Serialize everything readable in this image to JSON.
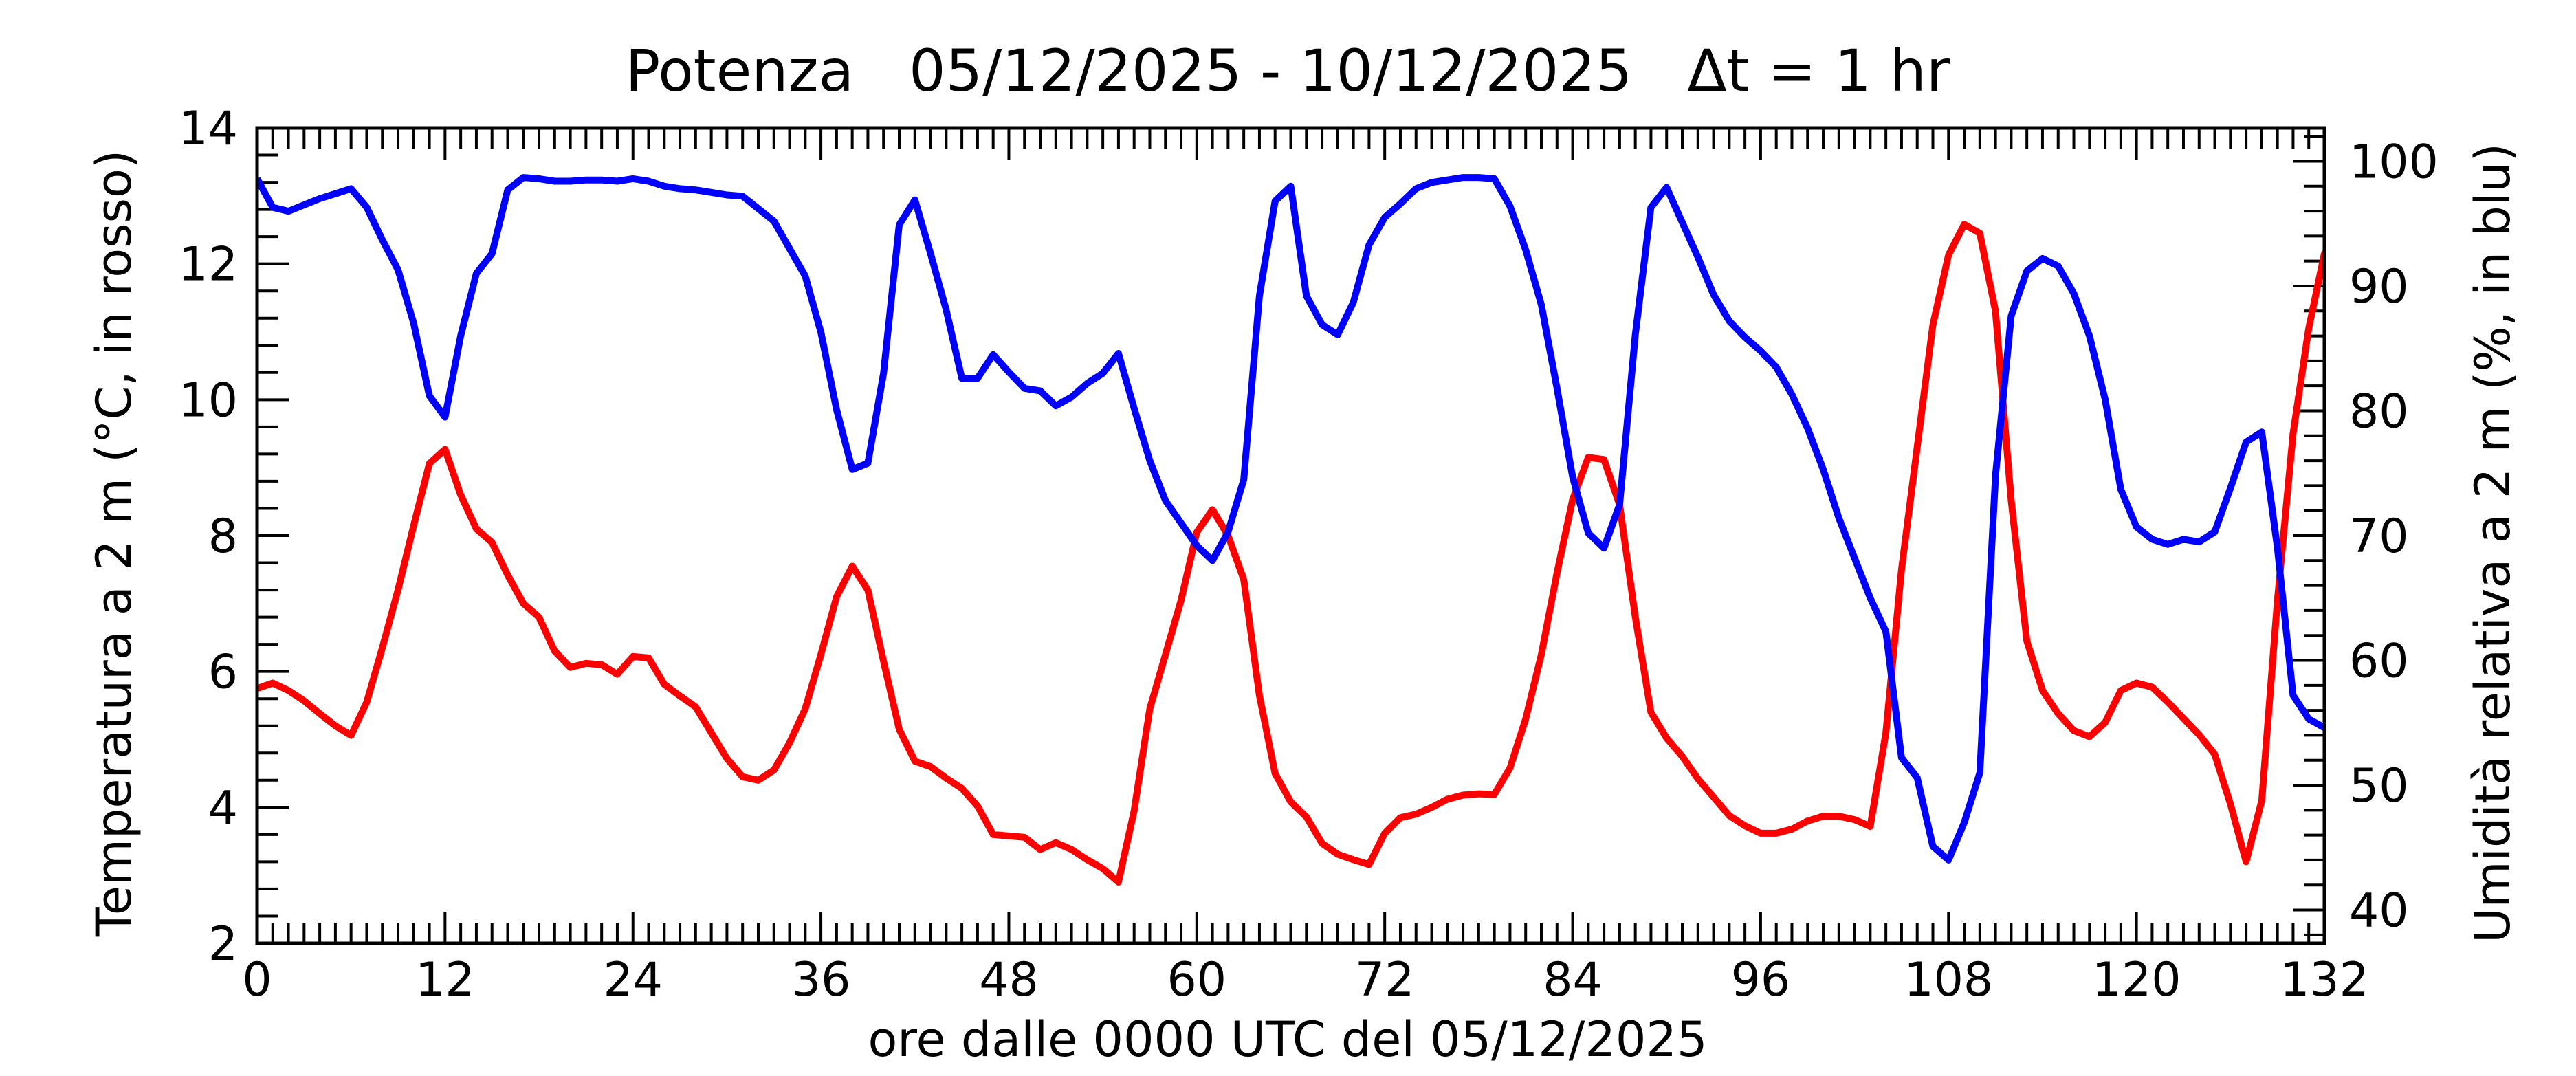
{
  "chart_data": {
    "type": "line",
    "title": "Potenza   05/12/2025 - 10/12/2025   Δt = 1 hr",
    "xlabel": "ore dalle 0000 UTC del 05/12/2025",
    "ylabel_left": "Temperatura a 2 m (°C, in rosso)",
    "ylabel_right": "Umidità relativa a 2 m (%, in blu)",
    "xlim": [
      0,
      132
    ],
    "ylim_left": [
      2,
      14
    ],
    "ylim_right": [
      37.33,
      102.67
    ],
    "x_ticks": [
      0,
      12,
      24,
      36,
      48,
      60,
      72,
      84,
      96,
      108,
      120,
      132
    ],
    "y_left_ticks": [
      2,
      4,
      6,
      8,
      10,
      12,
      14
    ],
    "y_right_ticks": [
      40,
      50,
      60,
      70,
      80,
      90,
      100
    ],
    "grid": false,
    "legend": "none",
    "series": [
      {
        "axis": "left",
        "color": "#ff0000",
        "points": [
          [
            0,
            5.75
          ],
          [
            1,
            5.83
          ],
          [
            2,
            5.72
          ],
          [
            3,
            5.57
          ],
          [
            4,
            5.38
          ],
          [
            5,
            5.2
          ],
          [
            6,
            5.06
          ],
          [
            7,
            5.55
          ],
          [
            8,
            6.35
          ],
          [
            9,
            7.2
          ],
          [
            10,
            8.15
          ],
          [
            11,
            9.06
          ],
          [
            12,
            9.27
          ],
          [
            13,
            8.6
          ],
          [
            14,
            8.1
          ],
          [
            15,
            7.9
          ],
          [
            16,
            7.42
          ],
          [
            17,
            7.0
          ],
          [
            18,
            6.8
          ],
          [
            19,
            6.3
          ],
          [
            20,
            6.06
          ],
          [
            21,
            6.12
          ],
          [
            22,
            6.1
          ],
          [
            23,
            5.96
          ],
          [
            24,
            6.22
          ],
          [
            25,
            6.2
          ],
          [
            26,
            5.81
          ],
          [
            27,
            5.64
          ],
          [
            28,
            5.48
          ],
          [
            29,
            5.1
          ],
          [
            30,
            4.72
          ],
          [
            31,
            4.45
          ],
          [
            32,
            4.4
          ],
          [
            33,
            4.55
          ],
          [
            34,
            4.95
          ],
          [
            35,
            5.45
          ],
          [
            36,
            6.25
          ],
          [
            37,
            7.1
          ],
          [
            38,
            7.55
          ],
          [
            39,
            7.2
          ],
          [
            40,
            6.15
          ],
          [
            41,
            5.15
          ],
          [
            42,
            4.68
          ],
          [
            43,
            4.6
          ],
          [
            44,
            4.43
          ],
          [
            45,
            4.28
          ],
          [
            46,
            4.02
          ],
          [
            47,
            3.6
          ],
          [
            48,
            3.58
          ],
          [
            49,
            3.56
          ],
          [
            50,
            3.38
          ],
          [
            51,
            3.48
          ],
          [
            52,
            3.38
          ],
          [
            53,
            3.23
          ],
          [
            54,
            3.1
          ],
          [
            55,
            2.9
          ],
          [
            56,
            3.95
          ],
          [
            57,
            5.45
          ],
          [
            58,
            6.25
          ],
          [
            59,
            7.05
          ],
          [
            60,
            8.05
          ],
          [
            61,
            8.38
          ],
          [
            62,
            8.0
          ],
          [
            63,
            7.35
          ],
          [
            64,
            5.65
          ],
          [
            65,
            4.5
          ],
          [
            66,
            4.08
          ],
          [
            67,
            3.86
          ],
          [
            68,
            3.47
          ],
          [
            69,
            3.31
          ],
          [
            70,
            3.23
          ],
          [
            71,
            3.16
          ],
          [
            72,
            3.62
          ],
          [
            73,
            3.85
          ],
          [
            74,
            3.9
          ],
          [
            75,
            4.0
          ],
          [
            76,
            4.12
          ],
          [
            77,
            4.18
          ],
          [
            78,
            4.2
          ],
          [
            79,
            4.19
          ],
          [
            80,
            4.58
          ],
          [
            81,
            5.3
          ],
          [
            82,
            6.25
          ],
          [
            83,
            7.45
          ],
          [
            84,
            8.53
          ],
          [
            85,
            9.15
          ],
          [
            86,
            9.12
          ],
          [
            87,
            8.45
          ],
          [
            88,
            6.8
          ],
          [
            89,
            5.4
          ],
          [
            90,
            5.02
          ],
          [
            91,
            4.75
          ],
          [
            92,
            4.42
          ],
          [
            93,
            4.15
          ],
          [
            94,
            3.88
          ],
          [
            95,
            3.73
          ],
          [
            96,
            3.62
          ],
          [
            97,
            3.62
          ],
          [
            98,
            3.68
          ],
          [
            99,
            3.8
          ],
          [
            100,
            3.87
          ],
          [
            101,
            3.87
          ],
          [
            102,
            3.82
          ],
          [
            103,
            3.72
          ],
          [
            104,
            5.1
          ],
          [
            105,
            7.5
          ],
          [
            106,
            9.3
          ],
          [
            107,
            11.1
          ],
          [
            108,
            12.13
          ],
          [
            109,
            12.58
          ],
          [
            110,
            12.45
          ],
          [
            111,
            11.3
          ],
          [
            112,
            8.52
          ],
          [
            113,
            6.45
          ],
          [
            114,
            5.72
          ],
          [
            115,
            5.38
          ],
          [
            116,
            5.13
          ],
          [
            117,
            5.04
          ],
          [
            118,
            5.25
          ],
          [
            119,
            5.72
          ],
          [
            120,
            5.83
          ],
          [
            121,
            5.77
          ],
          [
            122,
            5.55
          ],
          [
            123,
            5.31
          ],
          [
            124,
            5.07
          ],
          [
            125,
            4.78
          ],
          [
            126,
            4.05
          ],
          [
            127,
            3.2
          ],
          [
            128,
            4.1
          ],
          [
            129,
            7.05
          ],
          [
            130,
            9.5
          ],
          [
            131,
            11.05
          ],
          [
            132,
            12.15
          ],
          [
            133,
            12.35
          ]
        ]
      },
      {
        "axis": "right",
        "color": "#0000ff",
        "points": [
          [
            0,
            98.6
          ],
          [
            1,
            96.3
          ],
          [
            2,
            96.0
          ],
          [
            3,
            96.5
          ],
          [
            4,
            97.0
          ],
          [
            5,
            97.4
          ],
          [
            6,
            97.8
          ],
          [
            7,
            96.3
          ],
          [
            8,
            93.7
          ],
          [
            9,
            91.3
          ],
          [
            10,
            87.0
          ],
          [
            11,
            81.2
          ],
          [
            12,
            79.5
          ],
          [
            13,
            86.0
          ],
          [
            14,
            91.0
          ],
          [
            15,
            92.6
          ],
          [
            16,
            97.7
          ],
          [
            17,
            98.7
          ],
          [
            18,
            98.6
          ],
          [
            19,
            98.4
          ],
          [
            20,
            98.4
          ],
          [
            21,
            98.5
          ],
          [
            22,
            98.5
          ],
          [
            23,
            98.4
          ],
          [
            24,
            98.6
          ],
          [
            25,
            98.4
          ],
          [
            26,
            98.0
          ],
          [
            27,
            97.8
          ],
          [
            28,
            97.7
          ],
          [
            29,
            97.5
          ],
          [
            30,
            97.3
          ],
          [
            31,
            97.2
          ],
          [
            32,
            96.2
          ],
          [
            33,
            95.2
          ],
          [
            34,
            93.0
          ],
          [
            35,
            90.8
          ],
          [
            36,
            86.3
          ],
          [
            37,
            80.1
          ],
          [
            38,
            75.3
          ],
          [
            39,
            75.8
          ],
          [
            40,
            83.0
          ],
          [
            41,
            94.9
          ],
          [
            42,
            96.9
          ],
          [
            43,
            92.6
          ],
          [
            44,
            88.1
          ],
          [
            45,
            82.6
          ],
          [
            46,
            82.6
          ],
          [
            47,
            84.5
          ],
          [
            48,
            83.1
          ],
          [
            49,
            81.8
          ],
          [
            50,
            81.6
          ],
          [
            51,
            80.4
          ],
          [
            52,
            81.1
          ],
          [
            53,
            82.2
          ],
          [
            54,
            83.0
          ],
          [
            55,
            84.6
          ],
          [
            56,
            80.2
          ],
          [
            57,
            76.0
          ],
          [
            58,
            72.8
          ],
          [
            59,
            71.0
          ],
          [
            60,
            69.2
          ],
          [
            61,
            68.0
          ],
          [
            62,
            70.3
          ],
          [
            63,
            74.5
          ],
          [
            64,
            89.2
          ],
          [
            65,
            96.8
          ],
          [
            66,
            98.0
          ],
          [
            67,
            89.2
          ],
          [
            68,
            86.9
          ],
          [
            69,
            86.1
          ],
          [
            70,
            88.7
          ],
          [
            71,
            93.3
          ],
          [
            72,
            95.5
          ],
          [
            73,
            96.6
          ],
          [
            74,
            97.8
          ],
          [
            75,
            98.3
          ],
          [
            76,
            98.5
          ],
          [
            77,
            98.7
          ],
          [
            78,
            98.7
          ],
          [
            79,
            98.6
          ],
          [
            80,
            96.4
          ],
          [
            81,
            92.9
          ],
          [
            82,
            88.5
          ],
          [
            83,
            81.8
          ],
          [
            84,
            74.7
          ],
          [
            85,
            70.2
          ],
          [
            86,
            69.0
          ],
          [
            87,
            72.5
          ],
          [
            88,
            86.1
          ],
          [
            89,
            96.3
          ],
          [
            90,
            97.9
          ],
          [
            91,
            95.1
          ],
          [
            92,
            92.3
          ],
          [
            93,
            89.3
          ],
          [
            94,
            87.2
          ],
          [
            95,
            85.9
          ],
          [
            96,
            84.8
          ],
          [
            97,
            83.5
          ],
          [
            98,
            81.3
          ],
          [
            99,
            78.6
          ],
          [
            100,
            75.3
          ],
          [
            101,
            71.4
          ],
          [
            102,
            68.2
          ],
          [
            103,
            65.0
          ],
          [
            104,
            62.3
          ],
          [
            105,
            52.2
          ],
          [
            106,
            50.6
          ],
          [
            107,
            45.1
          ],
          [
            108,
            44.0
          ],
          [
            109,
            47.0
          ],
          [
            110,
            51.0
          ],
          [
            111,
            74.8
          ],
          [
            112,
            87.6
          ],
          [
            113,
            91.2
          ],
          [
            114,
            92.2
          ],
          [
            115,
            91.6
          ],
          [
            116,
            89.4
          ],
          [
            117,
            86.0
          ],
          [
            118,
            80.9
          ],
          [
            119,
            73.7
          ],
          [
            120,
            70.7
          ],
          [
            121,
            69.7
          ],
          [
            122,
            69.3
          ],
          [
            123,
            69.7
          ],
          [
            124,
            69.5
          ],
          [
            125,
            70.3
          ],
          [
            126,
            73.8
          ],
          [
            127,
            77.5
          ],
          [
            128,
            78.3
          ],
          [
            129,
            69.0
          ],
          [
            130,
            57.2
          ],
          [
            131,
            55.3
          ],
          [
            132,
            54.6
          ],
          [
            133,
            57.6
          ]
        ]
      }
    ]
  }
}
